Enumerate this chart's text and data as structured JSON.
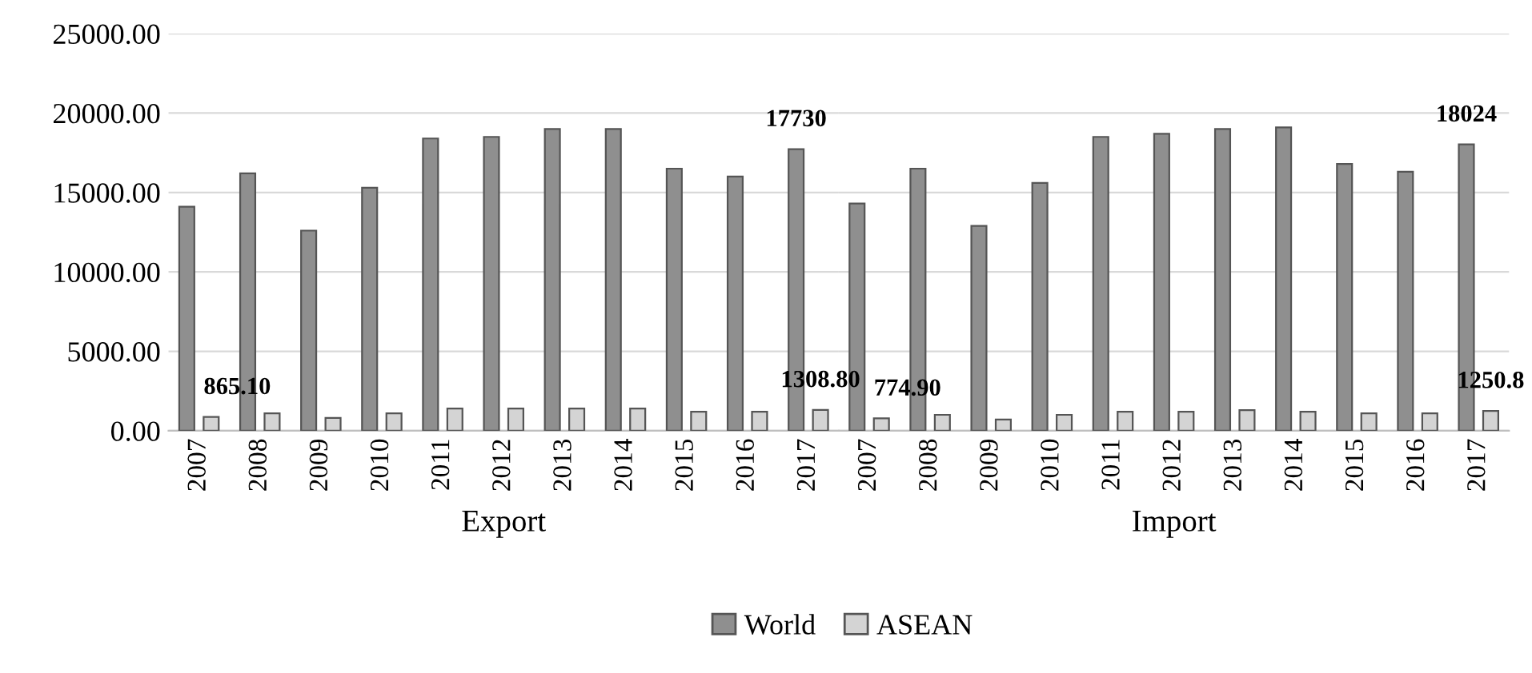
{
  "chart_data": [
    {
      "type": "bar",
      "xlabel": "Export",
      "categories": [
        "2007",
        "2008",
        "2009",
        "2010",
        "2011",
        "2012",
        "2013",
        "2014",
        "2015",
        "2016",
        "2017"
      ],
      "ylim": [
        0,
        25000
      ],
      "yticks": [
        {
          "value": 0,
          "label": "0.00"
        },
        {
          "value": 5000,
          "label": "5000.00"
        },
        {
          "value": 10000,
          "label": "10000.00"
        },
        {
          "value": 15000,
          "label": "15000.00"
        },
        {
          "value": 20000,
          "label": "20000.00"
        },
        {
          "value": 25000,
          "label": "25000.00"
        }
      ],
      "grid": "y",
      "legend": "bottom",
      "series": [
        {
          "name": "World",
          "color": "#8f8f8f",
          "values": [
            14100,
            16200,
            12600,
            15300,
            18400,
            18500,
            19000,
            19000,
            16500,
            16000,
            17730
          ],
          "value_labels": [
            null,
            null,
            null,
            null,
            null,
            null,
            null,
            null,
            null,
            null,
            "17730"
          ]
        },
        {
          "name": "ASEAN",
          "color": "#d4d4d4",
          "values": [
            865.1,
            1100,
            800,
            1100,
            1400,
            1400,
            1400,
            1400,
            1200,
            1200,
            1308.8
          ],
          "value_labels": [
            "865.10",
            null,
            null,
            null,
            null,
            null,
            null,
            null,
            null,
            null,
            "1308.80"
          ]
        }
      ]
    },
    {
      "type": "bar",
      "xlabel": "Import",
      "categories": [
        "2007",
        "2008",
        "2009",
        "2010",
        "2011",
        "2012",
        "2013",
        "2014",
        "2015",
        "2016",
        "2017"
      ],
      "ylim": [
        0,
        25000
      ],
      "tick_labels": "x",
      "grid": "y",
      "series": [
        {
          "color": "#8f8f8f",
          "values": [
            14300,
            16500,
            12900,
            15600,
            18500,
            18700,
            19000,
            19100,
            16800,
            16300,
            18024
          ],
          "value_labels": [
            null,
            null,
            null,
            null,
            null,
            null,
            null,
            null,
            null,
            null,
            "18024"
          ]
        },
        {
          "color": "#d4d4d4",
          "values": [
            774.9,
            1000,
            700,
            1000,
            1200,
            1200,
            1300,
            1200,
            1100,
            1100,
            1250.8
          ],
          "value_labels": [
            "774.90",
            null,
            null,
            null,
            null,
            null,
            null,
            null,
            null,
            null,
            "1250.8"
          ]
        }
      ]
    }
  ]
}
